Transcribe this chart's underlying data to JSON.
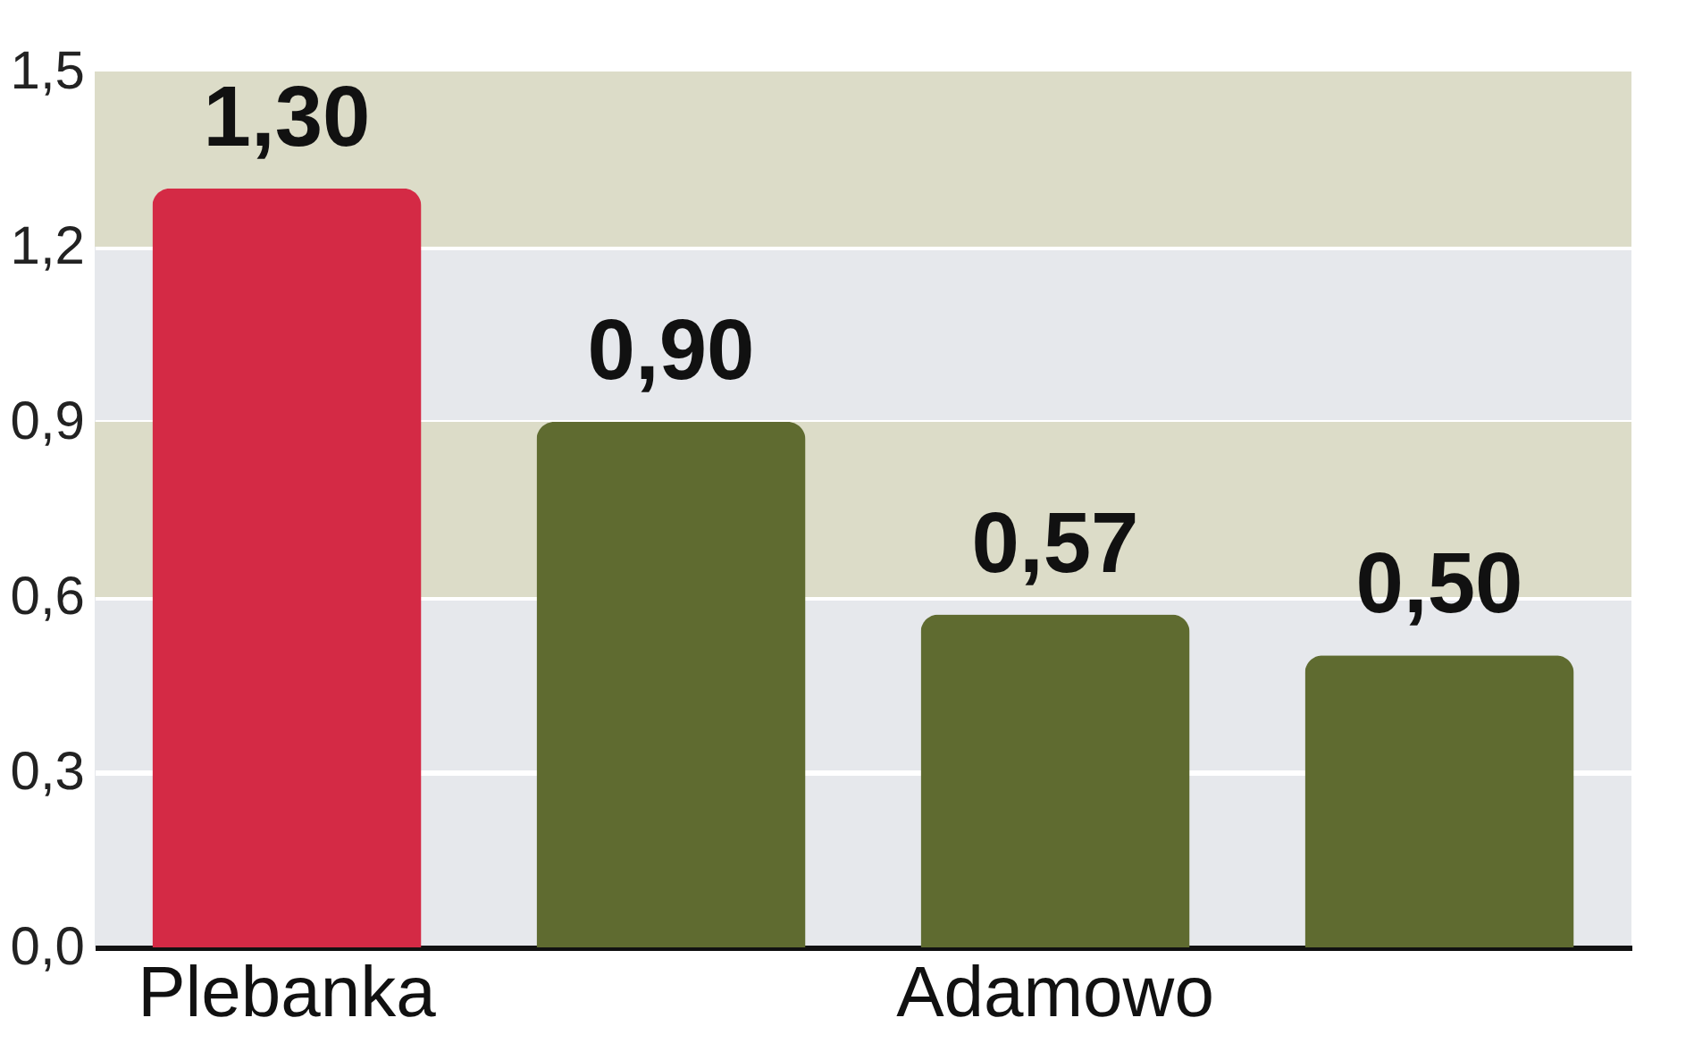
{
  "chart_data": {
    "type": "bar",
    "categories": [
      "Plebanka",
      null,
      "Adamowo",
      null
    ],
    "values": [
      1.3,
      0.9,
      0.57,
      0.5
    ],
    "colors": [
      "#d42a45",
      "#5f6b30",
      "#5f6b30",
      "#5f6b30"
    ],
    "value_labels": [
      "1,30",
      "0,90",
      "0,57",
      "0,50"
    ],
    "ylim": [
      0,
      1.5
    ],
    "yticks": [
      {
        "value": 0,
        "label": "0,0"
      },
      {
        "value": 0.3,
        "label": "0,3"
      },
      {
        "value": 0.6,
        "label": "0,6"
      },
      {
        "value": 0.9,
        "label": "0,9"
      },
      {
        "value": 1.2,
        "label": "1,2"
      },
      {
        "value": 1.5,
        "label": "1,5"
      }
    ],
    "bands": [
      {
        "axis": "y",
        "from": 0.6,
        "to": 0.9,
        "color": "#dcdcc8"
      },
      {
        "axis": "y",
        "from": 1.2,
        "to": 1.5,
        "color": "#dcdcc8"
      }
    ],
    "grid": "y"
  }
}
